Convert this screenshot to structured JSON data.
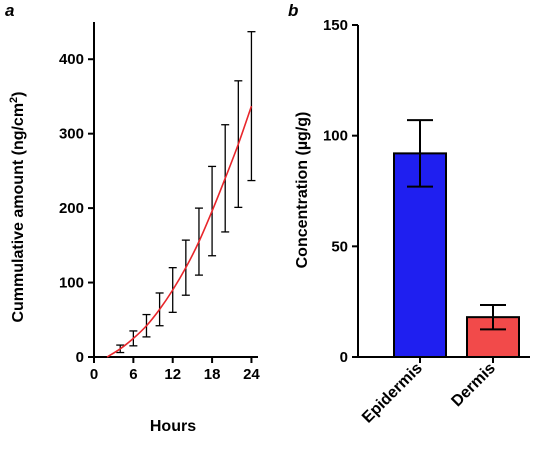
{
  "chart_data": [
    {
      "panel": "a",
      "type": "line",
      "xlabel": "Hours",
      "ylabel": "Cummulative amount (ng/cm",
      "ylabel_sup": "2",
      "ylabel_end": ")",
      "xlim": [
        0,
        25
      ],
      "ylim": [
        0,
        450
      ],
      "xticks": [
        0,
        6,
        12,
        18,
        24
      ],
      "yticks": [
        0,
        100,
        200,
        300,
        400
      ],
      "grid": false,
      "colors": {
        "line": "#e8262b",
        "error": "#000000"
      },
      "series": [
        {
          "x": [
            2,
            4,
            6,
            8,
            10,
            12,
            14,
            16,
            18,
            20,
            22,
            24
          ],
          "y": [
            0,
            11,
            25,
            42,
            64,
            90,
            120,
            155,
            196,
            240,
            286,
            337
          ],
          "err": [
            0,
            5,
            10,
            15,
            22,
            30,
            37,
            45,
            60,
            72,
            85,
            100
          ]
        }
      ]
    },
    {
      "panel": "b",
      "type": "bar",
      "categories": [
        "Epidermis",
        "Dermis"
      ],
      "values": [
        92,
        18
      ],
      "err": [
        15,
        5.5
      ],
      "ylabel": "Concentration (µg/g)",
      "ylim": [
        0,
        150
      ],
      "yticks": [
        0,
        50,
        100,
        150
      ],
      "grid": false,
      "colors": [
        "#1f1ff0",
        "#f24a4a"
      ]
    }
  ]
}
